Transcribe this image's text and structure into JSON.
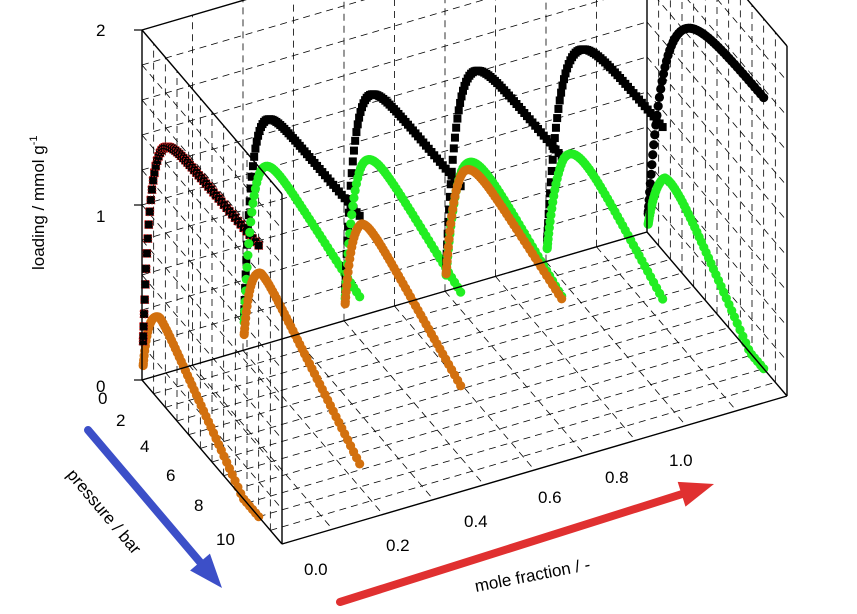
{
  "chart_data": {
    "type": "scatter",
    "dimensions": 3,
    "axes": {
      "x": {
        "label": "mole fraction / -",
        "range": [
          0,
          1
        ],
        "ticks": [
          "0.0",
          "0.2",
          "0.4",
          "0.6",
          "0.8",
          "1.0"
        ],
        "tick_values": [
          0,
          0.2,
          0.4,
          0.6,
          0.8,
          1.0
        ]
      },
      "y": {
        "label": "pressure / bar",
        "range": [
          0,
          12
        ],
        "ticks": [
          "0",
          "2",
          "4",
          "6",
          "8",
          "10"
        ],
        "tick_values": [
          0,
          2,
          4,
          6,
          8,
          10
        ]
      },
      "z": {
        "label": "loading / mmol g",
        "label_superscript": "-1",
        "range": [
          0,
          2
        ],
        "ticks": [
          "0",
          "1",
          "2"
        ],
        "tick_values": [
          0,
          1,
          2
        ]
      }
    },
    "grid": true,
    "arrows": {
      "pressure": "#3c4fc8",
      "mole_fraction": "#e03030"
    },
    "series": [
      {
        "color": "#000000",
        "marker": "square",
        "curves": [
          {
            "x": 0.0,
            "p_max": 10,
            "plateau": 1.55,
            "k": 1.6,
            "peak": 0
          },
          {
            "x": 0.2,
            "p_max": 10,
            "plateau": 1.55,
            "k": 1.5,
            "peak": 0
          },
          {
            "x": 0.4,
            "p_max": 10,
            "plateau": 1.55,
            "k": 1.3,
            "peak": 0
          },
          {
            "x": 0.6,
            "p_max": 10,
            "plateau": 1.55,
            "k": 1.1,
            "peak": 0
          },
          {
            "x": 0.8,
            "p_max": 10,
            "plateau": 1.55,
            "k": 0.9,
            "peak": 0
          }
        ]
      },
      {
        "color": "#000000",
        "marker": "circle",
        "curves": [
          {
            "x": 1.0,
            "p_max": 10,
            "plateau": 1.55,
            "k": 0.75,
            "peak": 0
          }
        ]
      },
      {
        "color": "#22ee22",
        "marker": "circle",
        "curves": [
          {
            "x": 0.2,
            "p_max": 10,
            "plateau": 1.3,
            "k": 1.4,
            "peak": 0.25
          },
          {
            "x": 0.4,
            "p_max": 10,
            "plateau": 1.2,
            "k": 1.2,
            "peak": 0.3
          },
          {
            "x": 0.6,
            "p_max": 10,
            "plateau": 1.05,
            "k": 1.0,
            "peak": 0.35
          },
          {
            "x": 0.8,
            "p_max": 10,
            "plateau": 0.95,
            "k": 0.9,
            "peak": 0.45
          },
          {
            "x": 1.0,
            "p_max": 10,
            "plateau": 0.55,
            "k": 1.0,
            "peak": 0.75
          }
        ]
      },
      {
        "color": "#d2700e",
        "marker": "circle",
        "curves": [
          {
            "x": 0.0,
            "p_max": 10,
            "plateau": 0.5,
            "k": 2.0,
            "peak": 0.7
          },
          {
            "x": 0.2,
            "p_max": 10,
            "plateau": 0.6,
            "k": 1.8,
            "peak": 0.55
          },
          {
            "x": 0.4,
            "p_max": 10,
            "plateau": 0.75,
            "k": 1.5,
            "peak": 0.4
          },
          {
            "x": 0.6,
            "p_max": 10,
            "plateau": 0.95,
            "k": 1.2,
            "peak": 0.25
          }
        ]
      },
      {
        "color": "#000000",
        "marker": "square",
        "red_outline": true,
        "curves": [
          {
            "x": 0.0,
            "p_max": 10,
            "plateau": 1.55,
            "k": 1.6,
            "peak": 0
          }
        ]
      }
    ]
  }
}
